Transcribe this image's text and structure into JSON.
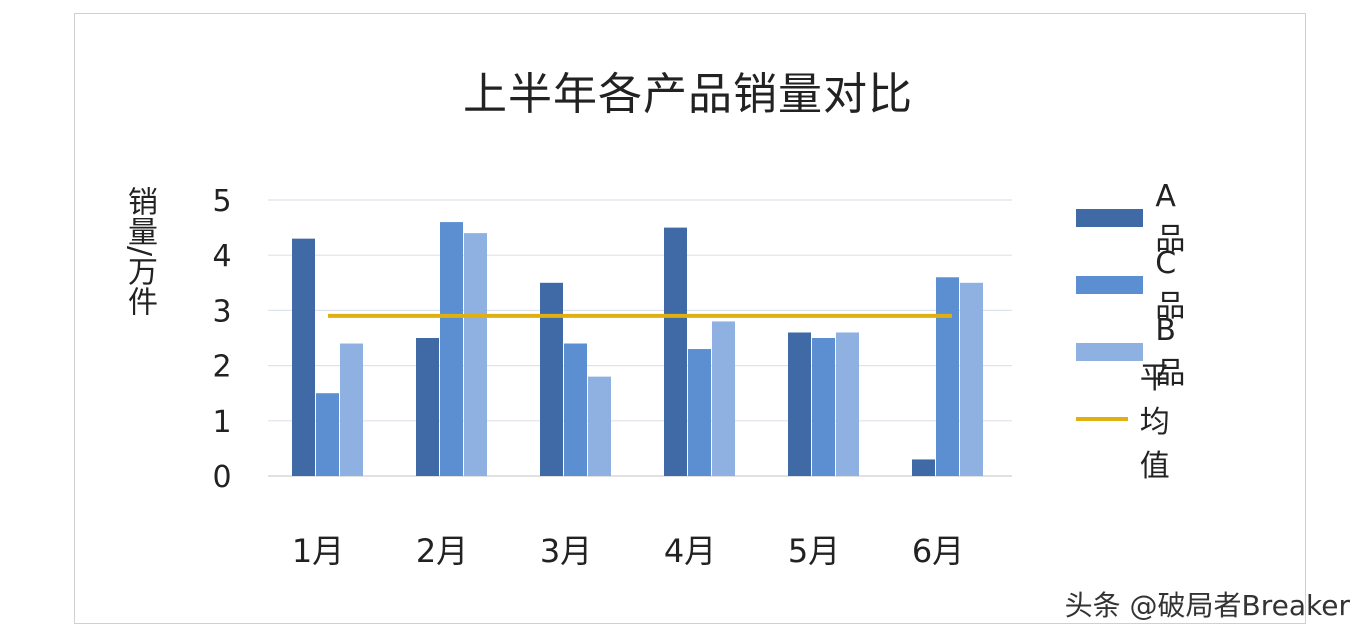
{
  "chart_data": {
    "type": "bar",
    "title": "上半年各产品销量对比",
    "ylabel": "销量/万件",
    "xlabel": "",
    "categories": [
      "1月",
      "2月",
      "3月",
      "4月",
      "5月",
      "6月"
    ],
    "ylim": [
      0,
      5
    ],
    "yticks": [
      "0",
      "1",
      "2",
      "3",
      "4",
      "5"
    ],
    "grid": true,
    "legend_position": "right",
    "series": [
      {
        "name": "A品",
        "color": "#3f6aa5",
        "values": [
          4.3,
          2.5,
          3.5,
          4.5,
          2.6,
          0.3
        ]
      },
      {
        "name": "C品",
        "color": "#5b8fd1",
        "values": [
          1.5,
          4.6,
          2.4,
          2.3,
          2.5,
          3.6
        ]
      },
      {
        "name": "B品",
        "color": "#8eb1e2",
        "values": [
          2.4,
          4.4,
          1.8,
          2.8,
          2.6,
          3.5
        ]
      }
    ],
    "average_line": {
      "name": "平均值",
      "color": "#e0b010",
      "value": 2.9
    }
  },
  "watermark": "头条 @破局者Breaker"
}
